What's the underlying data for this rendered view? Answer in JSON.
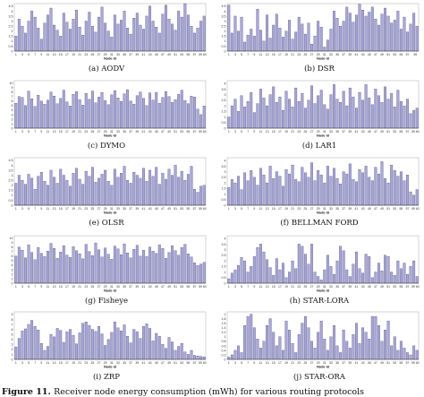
{
  "figure": {
    "caption_label": "Figure 11.",
    "caption_text": "Receiver node energy consumption (mWh) for various routing protocols"
  },
  "style": {
    "bar_fill": "#a9a7d6",
    "bar_stroke": "#3f3d78",
    "axis": "#333333"
  },
  "chart_data": [
    {
      "type": "bar",
      "caption": "(a) AODV",
      "xlabel": "Node Id",
      "yticks": [
        "0",
        "0.5",
        "1",
        "1.5",
        "2",
        "2.5",
        "3",
        "3.5",
        "4",
        "4.5"
      ],
      "xticks": [
        "1",
        "3",
        "5",
        "7",
        "9",
        "11",
        "13",
        "15",
        "17",
        "19",
        "21",
        "23",
        "25",
        "27",
        "29",
        "31",
        "33",
        "35",
        "37",
        "39",
        "41",
        "43",
        "45",
        "47",
        "49",
        "51",
        "53",
        "55",
        "57",
        "59 60"
      ],
      "ylim": [
        0,
        5
      ],
      "values": [
        1.5,
        3.2,
        2.5,
        1.8,
        3.0,
        4.0,
        3.4,
        2.3,
        1.2,
        2.8,
        3.6,
        4.3,
        2.6,
        2.1,
        1.5,
        3.8,
        2.9,
        2.2,
        3.2,
        4.1,
        2.4,
        1.6,
        3.0,
        3.9,
        2.5,
        1.9,
        3.4,
        4.4,
        2.8,
        2.0,
        1.4,
        3.6,
        2.7,
        3.1,
        4.0,
        2.3,
        1.7,
        3.3,
        3.8,
        2.6,
        2.2,
        3.5,
        4.5,
        3.0,
        2.4,
        1.8,
        3.7,
        4.6,
        3.2,
        2.7,
        2.1,
        4.0,
        3.4,
        4.8,
        3.6,
        2.5,
        1.8,
        2.3,
        3.0,
        3.5
      ]
    },
    {
      "type": "bar",
      "caption": "(b) DSR",
      "xlabel": "Node Id",
      "yticks": [
        "0",
        "0.5",
        "1",
        "1.5",
        "2",
        "2.5",
        "3",
        "3.5",
        "4",
        "4.5"
      ],
      "xticks": [
        "1",
        "3",
        "5",
        "7",
        "9",
        "11",
        "13",
        "15",
        "17",
        "19",
        "21",
        "23",
        "25",
        "27",
        "29",
        "31",
        "33",
        "35",
        "37",
        "39",
        "41",
        "43",
        "45",
        "47",
        "49",
        "51",
        "53",
        "55",
        "57",
        "59"
      ],
      "ylim": [
        0,
        5
      ],
      "values": [
        4.6,
        1.8,
        3.5,
        2.0,
        3.4,
        0.9,
        1.6,
        2.2,
        1.5,
        4.2,
        2.1,
        1.0,
        3.6,
        1.3,
        2.6,
        3.7,
        2.3,
        1.4,
        2.0,
        3.1,
        1.2,
        1.9,
        3.4,
        2.7,
        1.7,
        2.8,
        0.7,
        1.5,
        3.0,
        2.4,
        0.4,
        1.1,
        2.2,
        4.0,
        3.3,
        2.5,
        3.0,
        4.4,
        3.8,
        2.9,
        3.6,
        4.7,
        4.1,
        3.5,
        3.9,
        4.4,
        3.2,
        2.6,
        3.7,
        4.3,
        3.5,
        2.8,
        3.1,
        4.0,
        2.2,
        3.4,
        1.9,
        2.7,
        3.8,
        2.5
      ]
    },
    {
      "type": "bar",
      "caption": "(c) DYMO",
      "xlabel": "Node Id",
      "yticks": [
        "0",
        "1",
        "2",
        "3",
        "4",
        "5",
        "6",
        "7",
        "8",
        "9",
        "10"
      ],
      "xticks": [
        "1",
        "3",
        "5",
        "7",
        "9",
        "11",
        "13",
        "15",
        "17",
        "19",
        "21",
        "23",
        "25",
        "27",
        "29",
        "31",
        "33",
        "35",
        "37",
        "39",
        "41",
        "43",
        "45",
        "47",
        "49",
        "51",
        "53",
        "55",
        "57",
        "59 60"
      ],
      "ylim": [
        0,
        10
      ],
      "values": [
        5.5,
        7.0,
        6.8,
        5.0,
        8.2,
        6.5,
        4.8,
        7.3,
        6.0,
        5.3,
        6.2,
        8.0,
        7.1,
        5.4,
        6.6,
        8.4,
        5.8,
        4.9,
        7.5,
        8.1,
        6.3,
        5.1,
        7.7,
        6.4,
        8.2,
        5.6,
        6.9,
        7.9,
        6.1,
        5.2,
        7.4,
        8.3,
        6.7,
        5.9,
        7.6,
        8.5,
        6.0,
        5.3,
        7.2,
        8.0,
        6.6,
        5.0,
        7.8,
        6.2,
        7.9,
        5.5,
        6.8,
        8.1,
        7.0,
        5.7,
        6.3,
        7.5,
        8.4,
        6.1,
        5.4,
        7.1,
        6.9,
        4.2,
        3.0,
        4.9
      ]
    },
    {
      "type": "bar",
      "caption": "(d) LAR1",
      "xlabel": "Node Id",
      "yticks": [
        "0",
        "0.5",
        "1",
        "1.5",
        "2",
        "2.5",
        "3",
        "3.5",
        "4"
      ],
      "xticks": [
        "1",
        "3",
        "5",
        "7",
        "9",
        "11",
        "13",
        "15",
        "17",
        "19",
        "21",
        "23",
        "25",
        "27",
        "29",
        "31",
        "33",
        "35",
        "37",
        "39",
        "41",
        "43",
        "45",
        "47",
        "49",
        "51",
        "53",
        "55",
        "57",
        "59 60"
      ],
      "ylim": [
        0,
        4.5
      ],
      "values": [
        1.0,
        2.0,
        2.6,
        1.5,
        2.9,
        1.9,
        2.4,
        3.2,
        1.4,
        2.2,
        3.5,
        2.7,
        2.0,
        3.0,
        3.7,
        2.3,
        2.8,
        1.6,
        3.3,
        2.6,
        1.9,
        3.6,
        2.4,
        3.1,
        1.8,
        2.5,
        3.8,
        2.2,
        2.9,
        3.4,
        2.1,
        1.7,
        3.0,
        3.9,
        2.6,
        2.3,
        3.3,
        2.0,
        3.6,
        2.8,
        1.8,
        3.2,
        2.5,
        3.9,
        2.7,
        2.1,
        3.5,
        2.9,
        2.3,
        3.7,
        2.6,
        3.1,
        1.9,
        3.4,
        2.4,
        2.0,
        2.6,
        1.3,
        1.6,
        1.8
      ]
    },
    {
      "type": "bar",
      "caption": "(e) OLSR",
      "xlabel": "Node Id",
      "yticks": [
        "0",
        "0.5",
        "1",
        "1.5",
        "2",
        "2.5",
        "3",
        "3.5",
        "4",
        "4.5"
      ],
      "xticks": [
        "1",
        "3",
        "5",
        "7",
        "9",
        "11",
        "13",
        "15",
        "17",
        "19",
        "21",
        "23",
        "25",
        "27",
        "29",
        "31",
        "33",
        "35",
        "37",
        "39",
        "41",
        "43",
        "45",
        "47",
        "49",
        "51",
        "53",
        "55",
        "57",
        "59 60"
      ],
      "ylim": [
        0,
        5
      ],
      "values": [
        2.2,
        3.0,
        2.5,
        2.1,
        3.1,
        2.7,
        1.6,
        2.9,
        3.3,
        2.4,
        2.0,
        3.5,
        2.8,
        2.2,
        3.6,
        3.0,
        2.5,
        1.9,
        3.2,
        3.7,
        2.6,
        2.1,
        3.4,
        2.9,
        3.8,
        2.3,
        2.7,
        3.1,
        3.5,
        2.4,
        2.0,
        3.6,
        2.8,
        3.2,
        3.9,
        2.5,
        2.2,
        3.3,
        3.0,
        2.7,
        3.7,
        2.4,
        3.5,
        2.9,
        3.8,
        2.1,
        3.2,
        2.6,
        3.6,
        3.0,
        4.0,
        2.8,
        3.4,
        2.5,
        3.1,
        3.9,
        1.6,
        1.3,
        1.9,
        2.0
      ]
    },
    {
      "type": "bar",
      "caption": "(f) BELLMAN FORD",
      "xlabel": "Node Id",
      "yticks": [
        "0",
        "0.5",
        "1",
        "1.5",
        "2",
        "2.5",
        "3",
        "3.5",
        "4"
      ],
      "xticks": [
        "1",
        "3",
        "5",
        "7",
        "9",
        "11",
        "13",
        "15",
        "17",
        "19",
        "21",
        "23",
        "25",
        "27",
        "29",
        "31",
        "33",
        "35",
        "37",
        "39",
        "41",
        "43",
        "45",
        "47",
        "49",
        "51",
        "53",
        "55",
        "57",
        "59 60"
      ],
      "ylim": [
        0,
        4.5
      ],
      "values": [
        1.6,
        2.3,
        2.0,
        2.6,
        1.4,
        2.9,
        2.2,
        3.1,
        2.5,
        1.8,
        3.3,
        2.7,
        2.0,
        3.5,
        2.4,
        3.0,
        2.6,
        1.7,
        3.2,
        2.8,
        3.6,
        2.3,
        2.1,
        3.4,
        2.9,
        2.5,
        3.8,
        2.2,
        3.1,
        2.7,
        2.0,
        3.5,
        2.6,
        3.3,
        2.4,
        1.9,
        3.0,
        2.8,
        3.7,
        2.3,
        2.1,
        3.2,
        2.9,
        3.5,
        2.5,
        2.2,
        3.4,
        2.8,
        3.9,
        2.4,
        2.0,
        3.6,
        3.1,
        2.6,
        3.0,
        2.2,
        2.7,
        1.2,
        0.9,
        1.4
      ]
    },
    {
      "type": "bar",
      "caption": "(g) Fisheye",
      "xlabel": "Node Id",
      "yticks": [
        "0",
        "1",
        "2",
        "3",
        "4",
        "5",
        "6",
        "7",
        "8",
        "9",
        "10"
      ],
      "xticks": [
        "1",
        "3",
        "5",
        "7",
        "9",
        "11",
        "13",
        "15",
        "17",
        "19",
        "21",
        "23",
        "25",
        "27",
        "29",
        "31",
        "33",
        "35",
        "37",
        "39",
        "41",
        "43",
        "45",
        "47",
        "49",
        "51",
        "53",
        "55",
        "57",
        "59 60"
      ],
      "ylim": [
        0,
        10.5
      ],
      "values": [
        6.0,
        8.0,
        7.3,
        5.6,
        8.5,
        6.8,
        5.2,
        7.9,
        6.6,
        5.9,
        7.1,
        8.8,
        7.7,
        5.5,
        6.9,
        8.3,
        6.2,
        5.7,
        8.1,
        7.2,
        6.5,
        5.4,
        8.6,
        7.0,
        6.1,
        8.9,
        7.4,
        5.8,
        7.8,
        6.4,
        5.3,
        8.2,
        7.6,
        6.3,
        8.7,
        6.7,
        5.6,
        7.5,
        8.4,
        6.0,
        7.3,
        5.9,
        8.0,
        7.1,
        6.6,
        8.5,
        7.7,
        5.5,
        6.8,
        8.3,
        7.2,
        6.2,
        7.9,
        8.6,
        6.5,
        5.8,
        4.5,
        3.9,
        4.2,
        4.6
      ]
    },
    {
      "type": "bar",
      "caption": "(h) STAR-LORA",
      "xlabel": "Node Id",
      "yticks": [
        "0",
        "0.5",
        "1",
        "1.5",
        "2",
        "2.5",
        "3",
        "3.5",
        "4"
      ],
      "xticks": [
        "1",
        "3",
        "5",
        "7",
        "9",
        "11",
        "13",
        "15",
        "17",
        "19",
        "21",
        "23",
        "25",
        "27",
        "29",
        "31",
        "33",
        "35",
        "37",
        "39",
        "41",
        "43",
        "45",
        "47",
        "49",
        "51",
        "53",
        "55",
        "57",
        "59 60"
      ],
      "ylim": [
        0,
        4.5
      ],
      "values": [
        0.4,
        0.9,
        1.2,
        1.6,
        2.3,
        2.0,
        1.0,
        1.5,
        2.4,
        3.2,
        3.5,
        2.8,
        2.1,
        1.4,
        0.7,
        2.2,
        1.2,
        1.8,
        0.5,
        1.0,
        2.0,
        1.3,
        3.5,
        3.3,
        2.6,
        1.7,
        3.5,
        1.0,
        0.6,
        0.3,
        1.2,
        2.5,
        1.5,
        0.8,
        2.0,
        3.3,
        2.9,
        1.2,
        0.6,
        1.7,
        2.8,
        1.3,
        0.9,
        2.6,
        2.4,
        0.5,
        1.0,
        1.8,
        1.1,
        2.5,
        2.4,
        1.0,
        0.7,
        2.0,
        1.3,
        1.8,
        0.8,
        1.5,
        2.0,
        0.6
      ]
    },
    {
      "type": "bar",
      "caption": "(i) ZRP",
      "xlabel": "Node Id",
      "yticks": [
        "0",
        "1",
        "2",
        "3",
        "4",
        "5",
        "6",
        "7",
        "8",
        "9"
      ],
      "xticks": [
        "1",
        "3",
        "5",
        "7",
        "9",
        "11",
        "13",
        "15",
        "17",
        "19",
        "21",
        "23",
        "25",
        "27",
        "29",
        "31",
        "33",
        "35",
        "37",
        "39",
        "41",
        "43",
        "45",
        "47",
        "49",
        "51",
        "53",
        "55",
        "57",
        "59 60"
      ],
      "ylim": [
        0,
        9.5
      ],
      "values": [
        2.5,
        4.2,
        5.7,
        6.1,
        7.0,
        7.8,
        6.6,
        5.9,
        3.2,
        1.8,
        2.6,
        5.0,
        4.5,
        6.2,
        5.8,
        3.4,
        5.5,
        6.0,
        4.8,
        3.1,
        5.3,
        7.2,
        7.5,
        6.8,
        6.0,
        5.6,
        6.6,
        5.1,
        2.8,
        4.0,
        5.4,
        7.5,
        6.3,
        5.7,
        6.9,
        4.6,
        3.3,
        6.0,
        5.5,
        4.2,
        6.6,
        7.1,
        6.2,
        3.7,
        5.2,
        4.6,
        3.0,
        2.2,
        4.4,
        3.5,
        1.8,
        2.6,
        3.2,
        1.5,
        1.0,
        1.8,
        0.8,
        0.7,
        0.6,
        0.5
      ]
    },
    {
      "type": "bar",
      "caption": "(j) STAR-ORA",
      "xlabel": "Node Id",
      "yticks": [
        "0",
        "0.2",
        "0.4",
        "0.6",
        "0.8",
        "1",
        "1.2",
        "1.4",
        "1.6",
        "1.8",
        "2"
      ],
      "xticks": [
        "1",
        "3",
        "5",
        "7",
        "9",
        "11",
        "13",
        "15",
        "17",
        "19",
        "21",
        "23",
        "25",
        "27",
        "29",
        "31",
        "33",
        "35",
        "37",
        "39",
        "41",
        "43",
        "45",
        "47",
        "49",
        "51",
        "53",
        "55",
        "57",
        "59 60"
      ],
      "ylim": [
        0,
        2.4
      ],
      "values": [
        0.1,
        0.2,
        0.4,
        0.6,
        0.3,
        1.5,
        1.9,
        2.0,
        1.4,
        0.9,
        0.5,
        0.8,
        1.5,
        1.8,
        1.2,
        0.6,
        1.0,
        0.4,
        1.7,
        1.3,
        0.7,
        0.3,
        1.1,
        1.6,
        1.9,
        1.4,
        0.8,
        0.5,
        1.2,
        1.7,
        0.9,
        0.4,
        1.0,
        1.5,
        0.6,
        0.3,
        1.3,
        0.8,
        0.5,
        1.1,
        1.6,
        0.7,
        1.4,
        1.2,
        0.9,
        1.9,
        1.9,
        1.5,
        0.8,
        1.3,
        1.7,
        0.6,
        1.0,
        0.4,
        0.8,
        0.5,
        0.3,
        0.2,
        0.6,
        0.4
      ]
    }
  ]
}
